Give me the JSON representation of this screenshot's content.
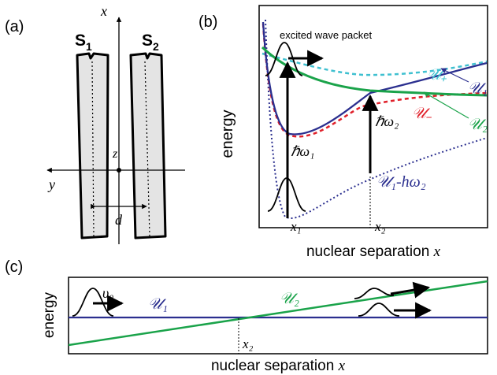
{
  "panels": {
    "a": {
      "tag": "(a)",
      "s1": "S",
      "s1_sub": "1",
      "s2": "S",
      "s2_sub": "2",
      "x_axis": "x",
      "y_axis": "y",
      "z_axis": "z",
      "sep": "d"
    },
    "b": {
      "tag": "(b)",
      "wave_label": "excited wave packet",
      "ylabel": "energy",
      "xlabel": "nuclear separation ",
      "xlabel_var": "x",
      "u_plus": "𝒰₊",
      "u_minus": "𝒰₋",
      "u1": "𝒰₁",
      "u2": "𝒰₂",
      "u1_minus": "𝒰₁-hω₂",
      "hw1": "ℏω₁",
      "hw2": "ℏω₂",
      "x1": "x₁",
      "x2": "x₂"
    },
    "c": {
      "tag": "(c)",
      "ylabel": "energy",
      "v0": "υ₀",
      "u1": "𝒰₁",
      "u2": "𝒰₂",
      "x2": "x₂",
      "xlabel": "nuclear separation ",
      "xlabel_var": "x"
    }
  },
  "colors": {
    "blue": "#2b2f8f",
    "green": "#1aa34a",
    "red": "#e0202a",
    "cyan": "#3fc0d0",
    "navy_dot": "#2b2f8f",
    "gray_fill": "#e4e4e4"
  }
}
